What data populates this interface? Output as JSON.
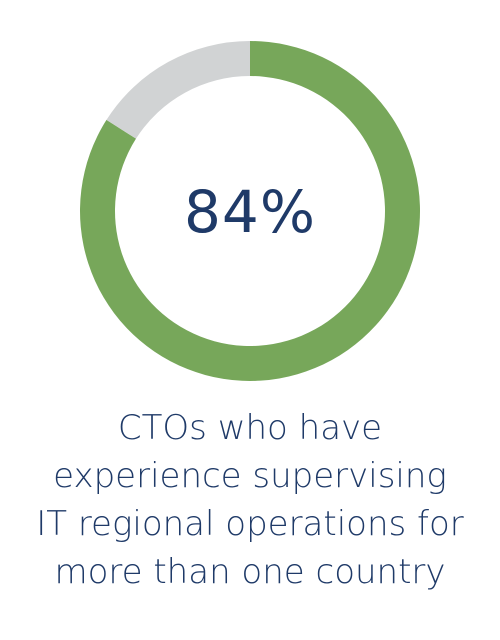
{
  "chart_data": {
    "type": "pie",
    "title": "",
    "center_label": "84%",
    "values": [
      84,
      16
    ],
    "colors": [
      "#77a75a",
      "#d1d3d4"
    ],
    "caption_lines": [
      "CTOs who have",
      "experience supervising",
      "IT regional operations for",
      "more than one country"
    ]
  }
}
